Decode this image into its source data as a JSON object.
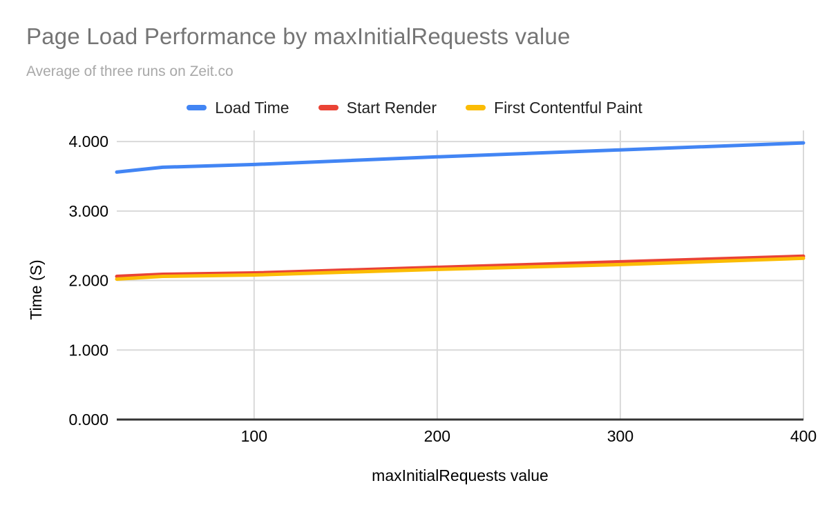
{
  "header": {
    "title": "Page Load Performance by maxInitialRequests value",
    "subtitle": "Average of three runs on Zeit.co",
    "title_color": "#757575",
    "subtitle_color": "#a8a8a8"
  },
  "chart_data": {
    "type": "line",
    "title": "Page Load Performance by maxInitialRequests value",
    "subtitle": "Average of three runs on Zeit.co",
    "xlabel": "maxInitialRequests value",
    "ylabel": "Time (S)",
    "x": [
      25,
      50,
      100,
      200,
      300,
      400
    ],
    "series": [
      {
        "name": "Load Time",
        "color": "#4285f4",
        "values": [
          3.56,
          3.63,
          3.67,
          3.78,
          3.88,
          3.98
        ]
      },
      {
        "name": "Start Render",
        "color": "#ea4335",
        "values": [
          2.06,
          2.09,
          2.11,
          2.19,
          2.27,
          2.35
        ]
      },
      {
        "name": "First Contentful Paint",
        "color": "#fbbc04",
        "values": [
          2.02,
          2.06,
          2.08,
          2.16,
          2.23,
          2.32
        ]
      }
    ],
    "xlim": [
      25,
      400
    ],
    "ylim": [
      0,
      4.16
    ],
    "x_ticks": [
      {
        "value": 100,
        "label": "100"
      },
      {
        "value": 200,
        "label": "200"
      },
      {
        "value": 300,
        "label": "300"
      },
      {
        "value": 400,
        "label": "400"
      }
    ],
    "y_ticks": [
      {
        "value": 0,
        "label": "0.000"
      },
      {
        "value": 1,
        "label": "1.000"
      },
      {
        "value": 2,
        "label": "2.000"
      },
      {
        "value": 3,
        "label": "3.000"
      },
      {
        "value": 4,
        "label": "4.000"
      }
    ],
    "grid": true,
    "legend_position": "top",
    "colors": {
      "gridline": "#d9d9d9",
      "axis_line": "#333333",
      "tick_label": "#000000",
      "axis_title": "#000000"
    }
  }
}
